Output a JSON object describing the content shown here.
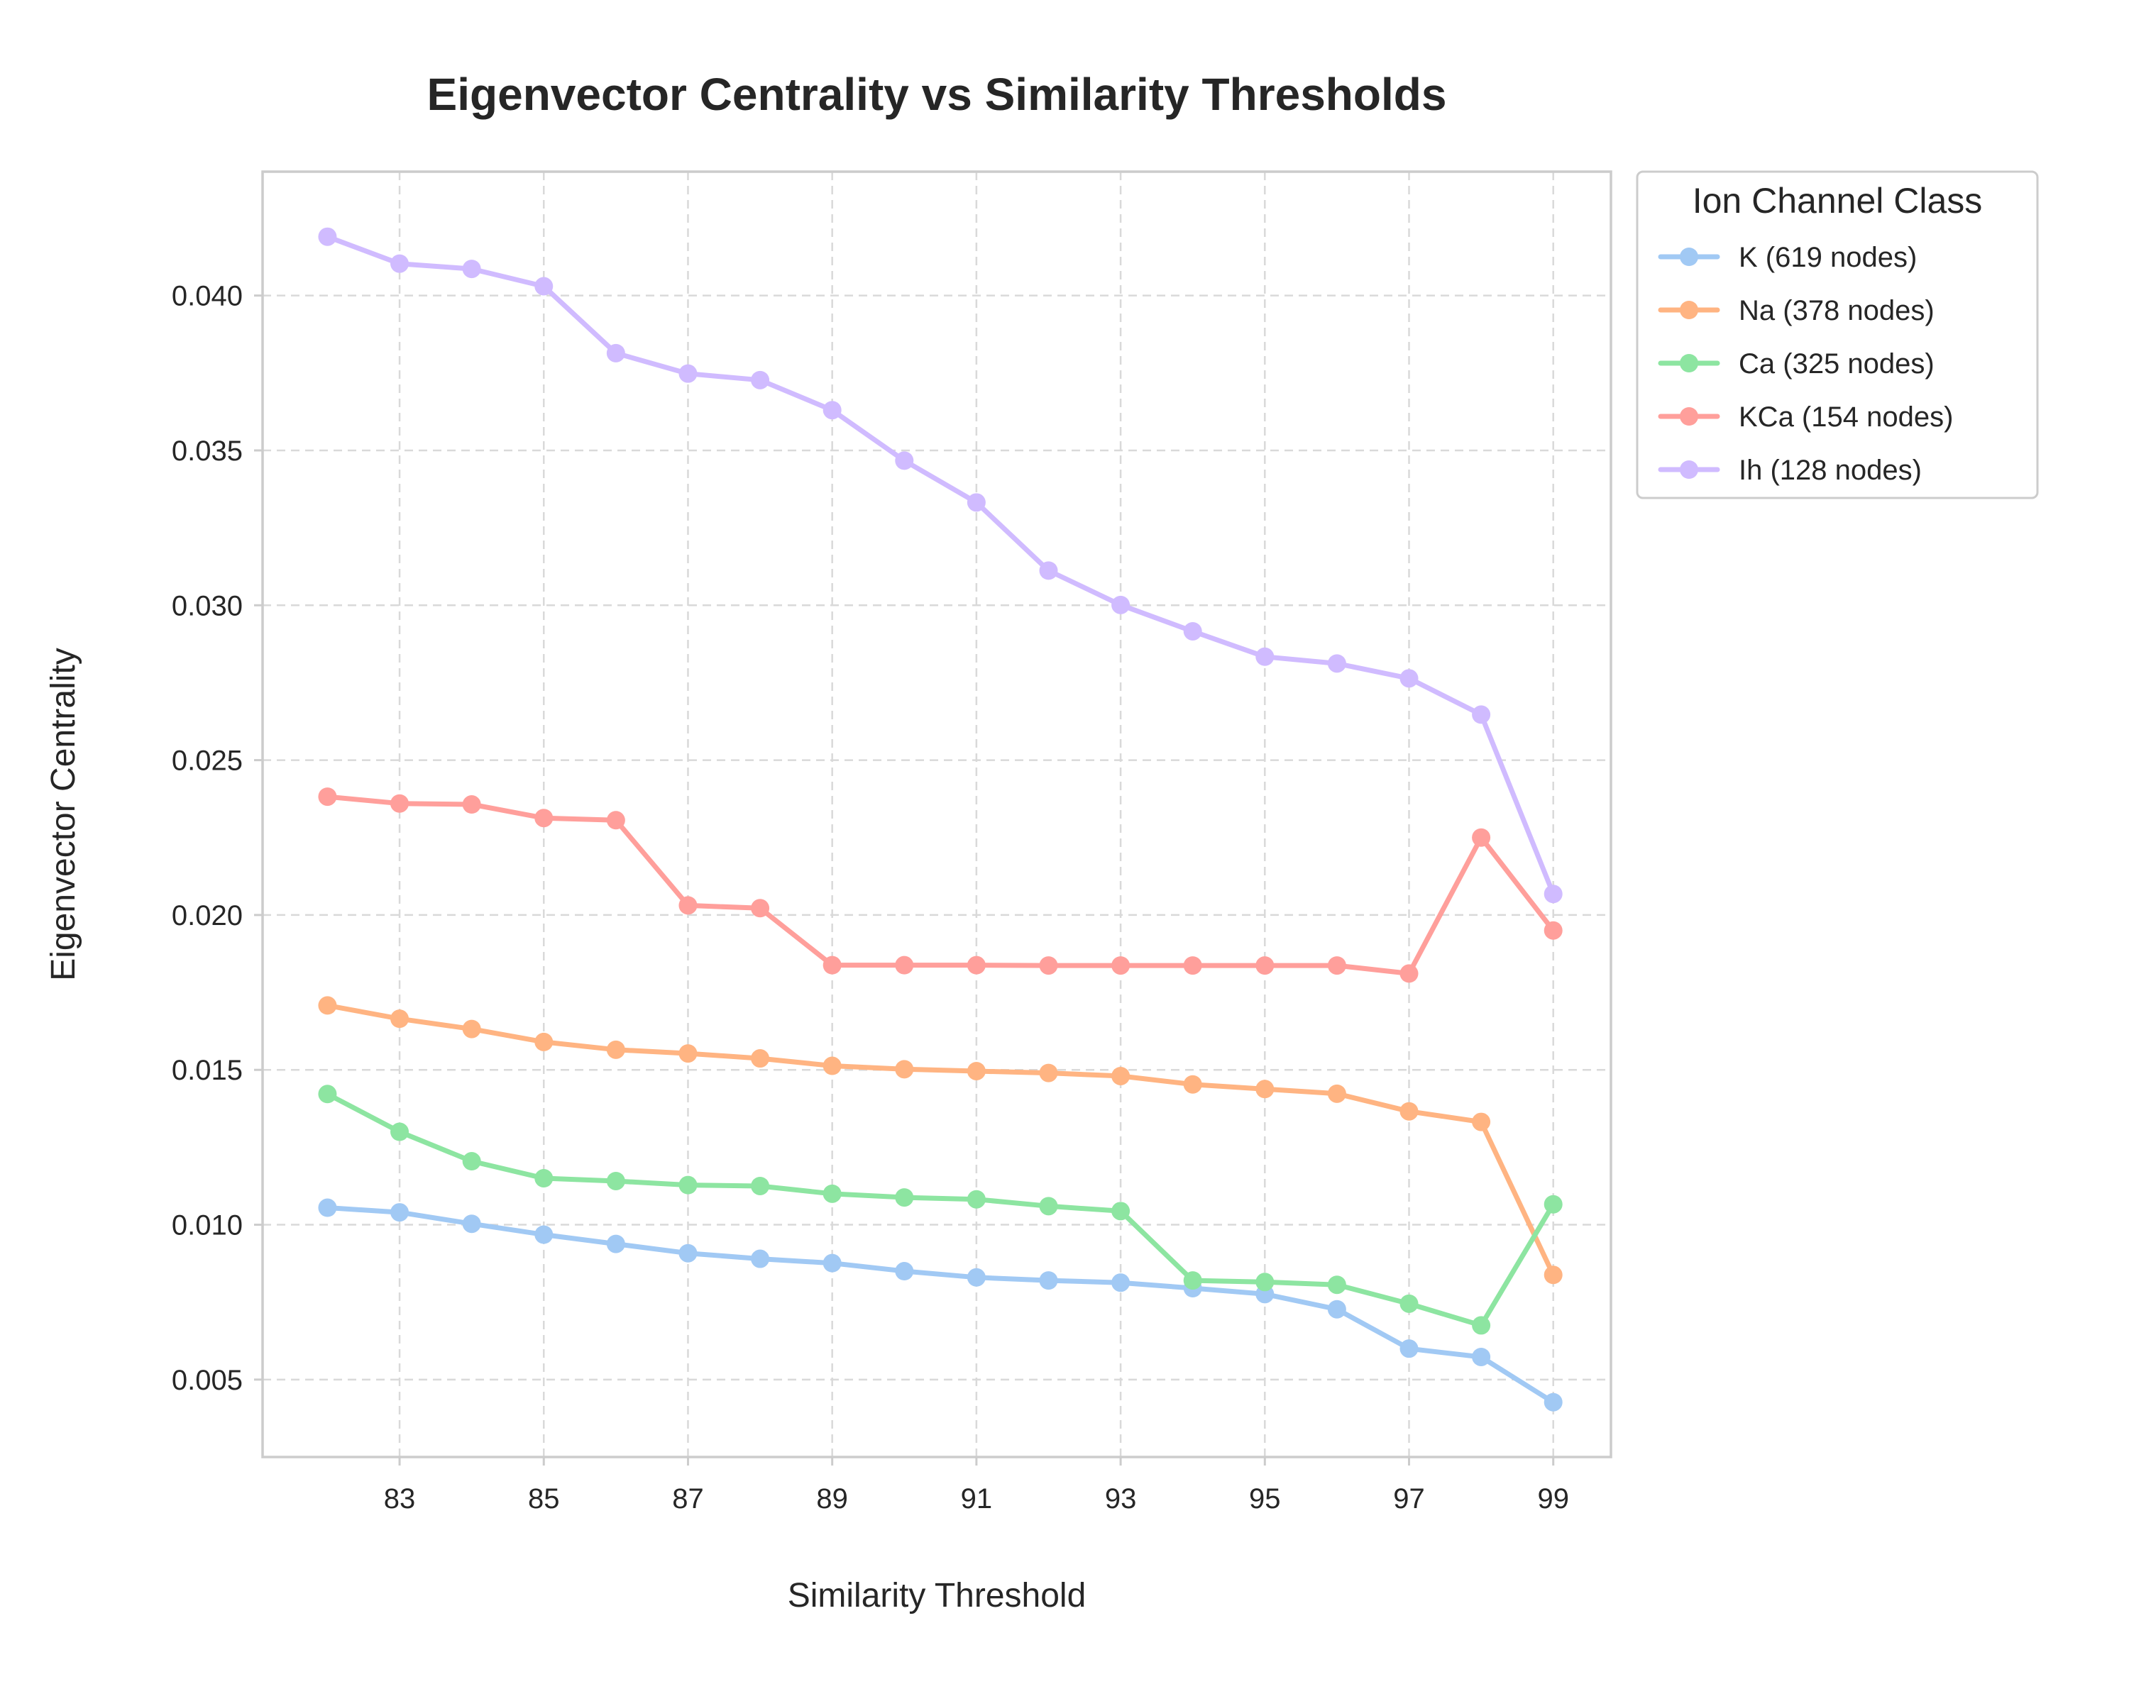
{
  "chart_data": {
    "type": "line",
    "title": "Eigenvector Centrality vs Similarity Thresholds",
    "xlabel": "Similarity Threshold",
    "ylabel": "Eigenvector Centrality",
    "xlim": [
      81.1,
      99.8
    ],
    "ylim": [
      0.0025,
      0.044
    ],
    "x_ticks": [
      83,
      85,
      87,
      89,
      91,
      93,
      95,
      97,
      99
    ],
    "x_tick_labels": [
      "83",
      "85",
      "87",
      "89",
      "91",
      "93",
      "95",
      "97",
      "99"
    ],
    "y_ticks": [
      0.005,
      0.01,
      0.015,
      0.02,
      0.025,
      0.03,
      0.035,
      0.04
    ],
    "y_tick_labels": [
      "0.005",
      "0.010",
      "0.015",
      "0.020",
      "0.025",
      "0.030",
      "0.035",
      "0.040"
    ],
    "grid": true,
    "legend": {
      "title": "Ion Channel Class",
      "position": "outside-right-top"
    },
    "x": [
      82,
      83,
      84,
      85,
      86,
      87,
      88,
      89,
      90,
      91,
      92,
      93,
      94,
      95,
      96,
      97,
      98,
      99
    ],
    "series": [
      {
        "name": "K (619 nodes)",
        "color": "#a1c9f4",
        "values": [
          0.01055,
          0.0104,
          0.01003,
          0.00968,
          0.00938,
          0.00908,
          0.0089,
          0.00876,
          0.0085,
          0.0083,
          0.0082,
          0.00813,
          0.00795,
          0.00776,
          0.00727,
          0.006,
          0.00573,
          0.00427
        ]
      },
      {
        "name": "Na (378 nodes)",
        "color": "#ffb482",
        "values": [
          0.01708,
          0.01665,
          0.01632,
          0.0159,
          0.01565,
          0.01553,
          0.01537,
          0.01513,
          0.01502,
          0.01496,
          0.0149,
          0.0148,
          0.01453,
          0.01438,
          0.01423,
          0.01366,
          0.01332,
          0.00838
        ]
      },
      {
        "name": "Ca (325 nodes)",
        "color": "#8de5a1",
        "values": [
          0.01422,
          0.013,
          0.01205,
          0.0115,
          0.01141,
          0.01128,
          0.01125,
          0.011,
          0.01088,
          0.01082,
          0.0106,
          0.01044,
          0.0082,
          0.00815,
          0.00806,
          0.00745,
          0.00675,
          0.01066
        ]
      },
      {
        "name": "KCa (154 nodes)",
        "color": "#ff9f9b",
        "values": [
          0.02382,
          0.0236,
          0.02357,
          0.02313,
          0.02306,
          0.02031,
          0.02022,
          0.01838,
          0.01838,
          0.01838,
          0.01837,
          0.01837,
          0.01837,
          0.01837,
          0.01837,
          0.01811,
          0.0225,
          0.0195
        ]
      },
      {
        "name": "Ih (128 nodes)",
        "color": "#d0bbff",
        "values": [
          0.0419,
          0.04103,
          0.04086,
          0.0403,
          0.03814,
          0.03748,
          0.03727,
          0.0363,
          0.03467,
          0.03332,
          0.03112,
          0.03001,
          0.02916,
          0.02834,
          0.02812,
          0.02764,
          0.02647,
          0.02068
        ]
      }
    ]
  }
}
